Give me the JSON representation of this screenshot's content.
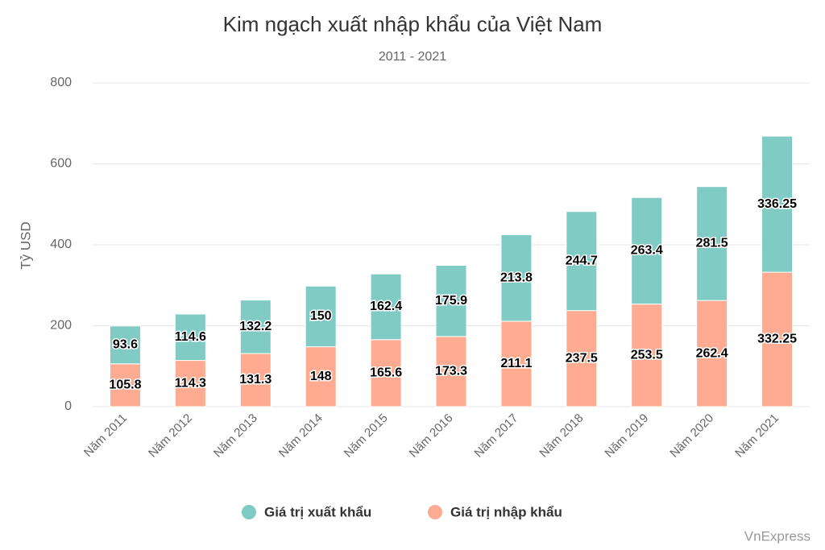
{
  "chart_data": {
    "type": "stacked_bar",
    "title": "Kim ngạch xuất nhập khẩu của Việt Nam",
    "subtitle": "2011 - 2021",
    "y_label": "Tỷ USD",
    "credit": "VnExpress",
    "categories": [
      "Năm 2011",
      "Năm 2012",
      "Năm 2013",
      "Năm 2014",
      "Năm 2015",
      "Năm 2016",
      "Năm 2017",
      "Năm 2018",
      "Năm 2019",
      "Năm 2020",
      "Năm 2021"
    ],
    "series": [
      {
        "name": "Giá trị xuất khẩu",
        "color": "#80cbc4",
        "values": [
          93.6,
          114.6,
          132.2,
          150,
          162.4,
          175.9,
          213.8,
          244.7,
          263.4,
          281.5,
          336.25
        ]
      },
      {
        "name": "Giá trị nhập khẩu",
        "color": "#ffab91",
        "values": [
          105.8,
          114.3,
          131.3,
          148,
          165.6,
          173.3,
          211.1,
          237.5,
          253.5,
          262.4,
          332.25
        ]
      }
    ],
    "ylim": [
      0,
      800
    ],
    "yticks": [
      0,
      200,
      400,
      600,
      800
    ],
    "grid": true,
    "legend": "bottom"
  }
}
